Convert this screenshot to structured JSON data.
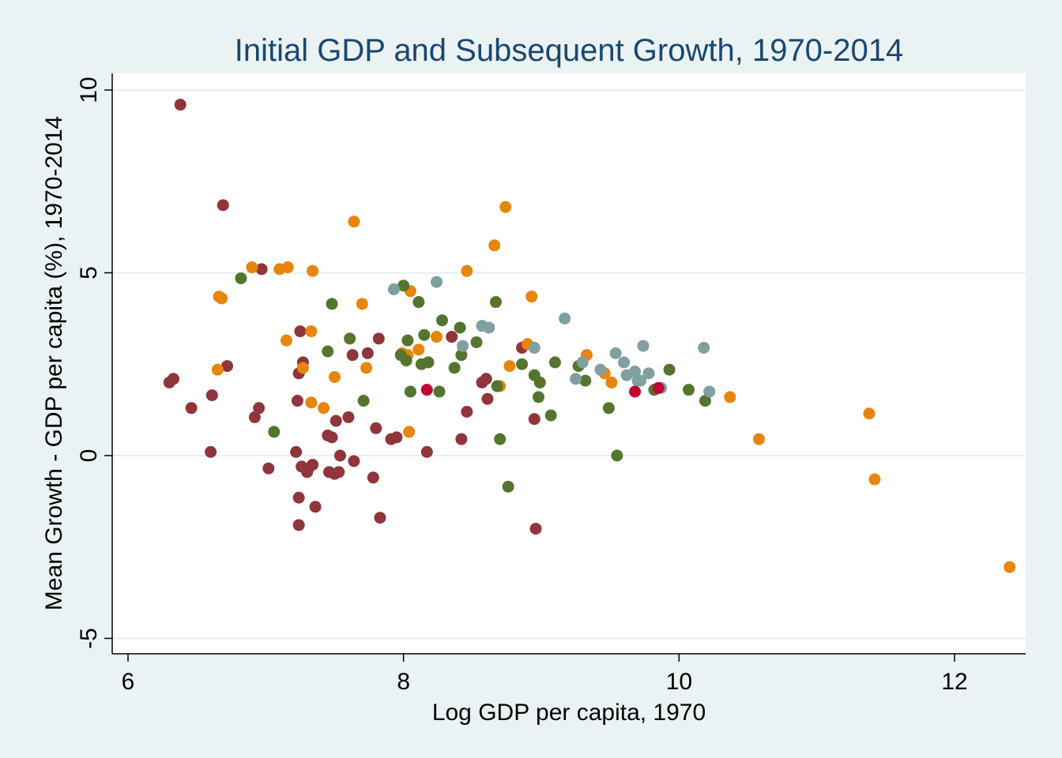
{
  "chart_data": {
    "type": "scatter",
    "title": "Initial GDP and Subsequent Growth, 1970-2014",
    "xlabel": "Log GDP per capita, 1970",
    "ylabel": "Mean Growth - GDP per capita (%), 1970-2014",
    "xlim": [
      5.95,
      12.5
    ],
    "ylim": [
      -5.5,
      10.5
    ],
    "xticks": [
      6,
      8,
      10,
      12
    ],
    "yticks": [
      -5,
      0,
      5,
      10
    ],
    "grid": "horizontal",
    "legend": "none",
    "colors": {
      "plot_bg": "#ffffff",
      "outer_bg": "#eaf2f3",
      "title": "#1a476f",
      "gridline": "#e6eef0"
    },
    "series": [
      {
        "color": "#90353b",
        "points": [
          [
            6.3,
            2.0
          ],
          [
            6.33,
            2.1
          ],
          [
            6.38,
            9.6
          ],
          [
            6.46,
            1.3
          ],
          [
            6.6,
            0.1
          ],
          [
            6.61,
            1.65
          ],
          [
            6.69,
            6.85
          ],
          [
            6.72,
            2.45
          ],
          [
            6.92,
            1.05
          ],
          [
            6.95,
            1.3
          ],
          [
            6.97,
            5.1
          ],
          [
            7.02,
            -0.35
          ],
          [
            7.22,
            0.1
          ],
          [
            7.23,
            1.5
          ],
          [
            7.24,
            -1.15
          ],
          [
            7.24,
            -1.9
          ],
          [
            7.24,
            2.25
          ],
          [
            7.25,
            3.4
          ],
          [
            7.26,
            -0.3
          ],
          [
            7.27,
            2.55
          ],
          [
            7.3,
            -0.45
          ],
          [
            7.31,
            -0.35
          ],
          [
            7.34,
            -0.25
          ],
          [
            7.36,
            -1.4
          ],
          [
            7.45,
            0.55
          ],
          [
            7.46,
            -0.45
          ],
          [
            7.48,
            0.5
          ],
          [
            7.5,
            -0.5
          ],
          [
            7.51,
            0.95
          ],
          [
            7.53,
            -0.45
          ],
          [
            7.54,
            0.0
          ],
          [
            7.6,
            1.05
          ],
          [
            7.63,
            2.75
          ],
          [
            7.64,
            -0.15
          ],
          [
            7.74,
            2.8
          ],
          [
            7.78,
            -0.6
          ],
          [
            7.8,
            0.75
          ],
          [
            7.82,
            3.2
          ],
          [
            7.83,
            -1.7
          ],
          [
            7.91,
            0.45
          ],
          [
            7.95,
            0.5
          ],
          [
            8.17,
            0.1
          ],
          [
            8.35,
            3.25
          ],
          [
            8.42,
            0.45
          ],
          [
            8.46,
            1.2
          ],
          [
            8.57,
            2.0
          ],
          [
            8.6,
            2.1
          ],
          [
            8.61,
            1.55
          ],
          [
            8.86,
            2.95
          ],
          [
            8.95,
            1.0
          ],
          [
            8.96,
            -2.0
          ]
        ]
      },
      {
        "color": "#e8850c",
        "points": [
          [
            6.65,
            2.35
          ],
          [
            6.66,
            4.35
          ],
          [
            6.68,
            4.3
          ],
          [
            6.9,
            5.15
          ],
          [
            7.1,
            5.1
          ],
          [
            7.15,
            3.15
          ],
          [
            7.16,
            5.15
          ],
          [
            7.27,
            2.4
          ],
          [
            7.33,
            3.4
          ],
          [
            7.33,
            1.45
          ],
          [
            7.34,
            5.05
          ],
          [
            7.42,
            1.3
          ],
          [
            7.5,
            2.15
          ],
          [
            7.64,
            6.4
          ],
          [
            7.7,
            4.15
          ],
          [
            7.73,
            2.4
          ],
          [
            7.99,
            2.8
          ],
          [
            8.03,
            2.75
          ],
          [
            8.04,
            0.65
          ],
          [
            8.05,
            4.5
          ],
          [
            8.11,
            2.9
          ],
          [
            8.24,
            3.25
          ],
          [
            8.46,
            5.05
          ],
          [
            8.66,
            5.75
          ],
          [
            8.7,
            1.9
          ],
          [
            8.74,
            6.8
          ],
          [
            8.77,
            2.45
          ],
          [
            8.9,
            3.05
          ],
          [
            8.93,
            4.35
          ],
          [
            9.33,
            2.75
          ],
          [
            9.46,
            2.25
          ],
          [
            9.51,
            2.0
          ],
          [
            10.37,
            1.6
          ],
          [
            10.58,
            0.45
          ],
          [
            11.38,
            1.15
          ],
          [
            11.42,
            -0.65
          ],
          [
            12.4,
            -3.05
          ]
        ]
      },
      {
        "color": "#55752f",
        "points": [
          [
            6.82,
            4.85
          ],
          [
            7.06,
            0.65
          ],
          [
            7.45,
            2.85
          ],
          [
            7.48,
            4.15
          ],
          [
            7.61,
            3.2
          ],
          [
            7.71,
            1.5
          ],
          [
            7.98,
            2.75
          ],
          [
            8.0,
            4.65
          ],
          [
            8.02,
            2.6
          ],
          [
            8.03,
            3.15
          ],
          [
            8.05,
            1.75
          ],
          [
            8.11,
            4.2
          ],
          [
            8.13,
            2.5
          ],
          [
            8.15,
            3.3
          ],
          [
            8.18,
            2.55
          ],
          [
            8.26,
            1.75
          ],
          [
            8.28,
            3.7
          ],
          [
            8.37,
            2.4
          ],
          [
            8.41,
            3.5
          ],
          [
            8.42,
            2.75
          ],
          [
            8.53,
            3.1
          ],
          [
            8.67,
            4.2
          ],
          [
            8.68,
            1.9
          ],
          [
            8.7,
            0.45
          ],
          [
            8.76,
            -0.85
          ],
          [
            8.86,
            2.5
          ],
          [
            8.95,
            2.2
          ],
          [
            8.98,
            1.6
          ],
          [
            8.99,
            2.0
          ],
          [
            9.07,
            1.1
          ],
          [
            9.1,
            2.55
          ],
          [
            9.27,
            2.45
          ],
          [
            9.32,
            2.05
          ],
          [
            9.49,
            1.3
          ],
          [
            9.55,
            0.0
          ],
          [
            9.82,
            1.8
          ],
          [
            9.93,
            2.35
          ],
          [
            10.07,
            1.8
          ],
          [
            10.19,
            1.5
          ]
        ]
      },
      {
        "color": "#7f9fa0",
        "points": [
          [
            7.93,
            4.55
          ],
          [
            8.24,
            4.75
          ],
          [
            8.43,
            3.0
          ],
          [
            8.57,
            3.55
          ],
          [
            8.62,
            3.5
          ],
          [
            8.95,
            2.95
          ],
          [
            9.17,
            3.75
          ],
          [
            9.25,
            2.1
          ],
          [
            9.3,
            2.55
          ],
          [
            9.43,
            2.35
          ],
          [
            9.54,
            2.8
          ],
          [
            9.6,
            2.55
          ],
          [
            9.62,
            2.2
          ],
          [
            9.68,
            2.3
          ],
          [
            9.7,
            2.05
          ],
          [
            9.72,
            2.05
          ],
          [
            9.74,
            3.0
          ],
          [
            9.78,
            2.25
          ],
          [
            9.87,
            1.85
          ],
          [
            10.18,
            2.95
          ],
          [
            10.22,
            1.75
          ]
        ]
      },
      {
        "color": "#c10534",
        "points": [
          [
            8.17,
            1.8
          ],
          [
            9.68,
            1.75
          ],
          [
            9.85,
            1.85
          ]
        ]
      }
    ]
  }
}
